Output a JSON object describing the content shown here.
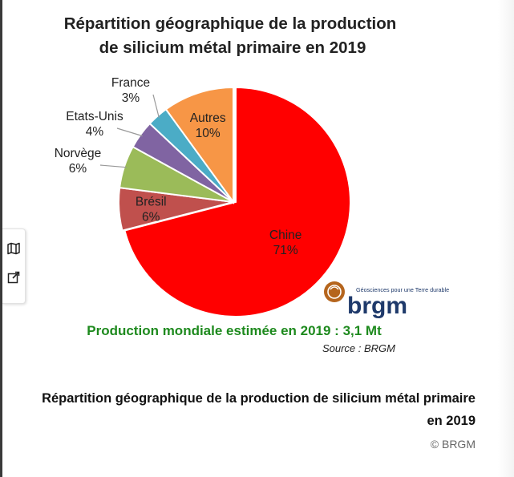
{
  "chart_data": {
    "type": "pie",
    "title_lines": [
      "Répartition géographique de la production",
      "de silicium métal primaire en 2019"
    ],
    "slices": [
      {
        "name": "Chine",
        "value": 71,
        "label": "71%",
        "color": "#ff0000"
      },
      {
        "name": "Brésil",
        "value": 6,
        "label": "6%",
        "color": "#c0504d"
      },
      {
        "name": "Norvège",
        "value": 6,
        "label": "6%",
        "color": "#9bbb59"
      },
      {
        "name": "Etats-Unis",
        "value": 4,
        "label": "4%",
        "color": "#8064a2"
      },
      {
        "name": "France",
        "value": 3,
        "label": "3%",
        "color": "#4bacc6"
      },
      {
        "name": "Autres",
        "value": 10,
        "label": "10%",
        "color": "#f79646"
      }
    ],
    "production_note": "Production mondiale estimée en 2019 : 3,1 Mt",
    "source_note": "Source : BRGM"
  },
  "logo": {
    "wordmark": "brgm",
    "tagline": "Géosciences pour une Terre durable",
    "colors": {
      "wordmark": "#1f3a6b",
      "emblem": "#b5651d"
    }
  },
  "side_toolbar": {
    "buttons": [
      {
        "icon": "map-icon"
      },
      {
        "icon": "open-external-icon"
      }
    ]
  },
  "caption": {
    "line1": "Répartition géographique de la production de silicium métal primaire",
    "line2": "en 2019"
  },
  "credit": "© BRGM"
}
